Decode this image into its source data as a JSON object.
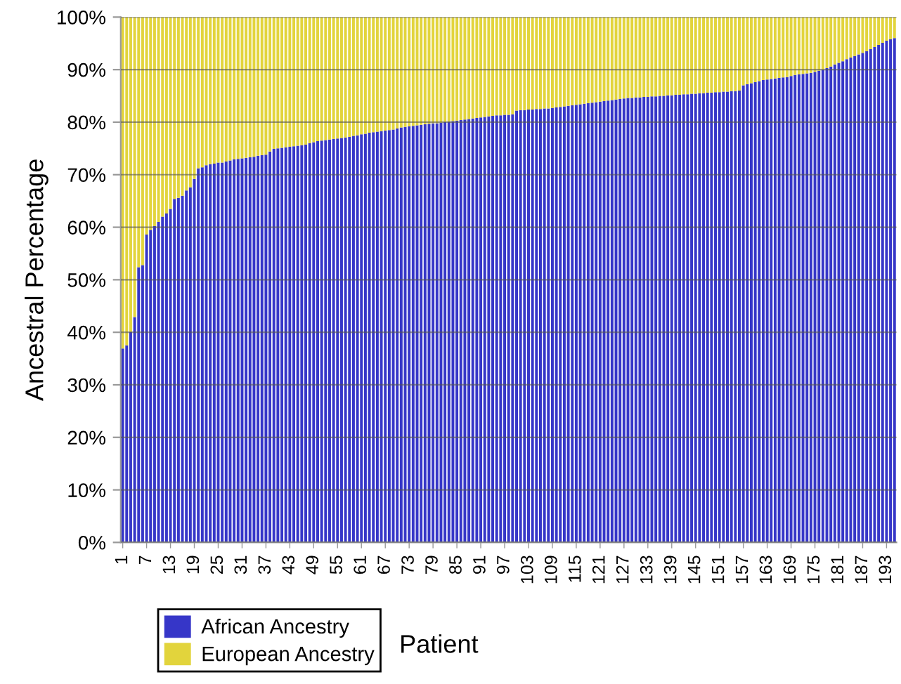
{
  "chart_data": {
    "type": "bar",
    "stacked": true,
    "ylabel": "Ancestral Percentage",
    "xlabel": "Patient",
    "categories": [
      "1",
      null,
      null,
      null,
      null,
      null,
      "7",
      null,
      null,
      null,
      null,
      null,
      "13",
      null,
      null,
      null,
      null,
      null,
      "19",
      null,
      null,
      null,
      null,
      null,
      "25",
      null,
      null,
      null,
      null,
      null,
      "31",
      null,
      null,
      null,
      null,
      null,
      "37",
      null,
      null,
      null,
      null,
      null,
      "43",
      null,
      null,
      null,
      null,
      null,
      "49",
      null,
      null,
      null,
      null,
      null,
      "55",
      null,
      null,
      null,
      null,
      null,
      "61",
      null,
      null,
      null,
      null,
      null,
      "67",
      null,
      null,
      null,
      null,
      null,
      "73",
      null,
      null,
      null,
      null,
      null,
      "79",
      null,
      null,
      null,
      null,
      null,
      "85",
      null,
      null,
      null,
      null,
      null,
      "91",
      null,
      null,
      null,
      null,
      null,
      "97",
      null,
      null,
      null,
      null,
      null,
      "103",
      null,
      null,
      null,
      null,
      null,
      "109",
      null,
      null,
      null,
      null,
      null,
      "115",
      null,
      null,
      null,
      null,
      null,
      "121",
      null,
      null,
      null,
      null,
      null,
      "127",
      null,
      null,
      null,
      null,
      null,
      "133",
      null,
      null,
      null,
      null,
      null,
      "139",
      null,
      null,
      null,
      null,
      null,
      "145",
      null,
      null,
      null,
      null,
      null,
      "151",
      null,
      null,
      null,
      null,
      null,
      "157",
      null,
      null,
      null,
      null,
      null,
      "163",
      null,
      null,
      null,
      null,
      null,
      "169",
      null,
      null,
      null,
      null,
      null,
      "175",
      null,
      null,
      null,
      null,
      null,
      "181",
      null,
      null,
      null,
      null,
      null,
      "187",
      null,
      null,
      null,
      null,
      null,
      "193",
      null,
      null
    ],
    "series": [
      {
        "name": "African Ancestry",
        "color": "#3636c8",
        "values": [
          36.9,
          37.5,
          40.1,
          42.9,
          52.4,
          52.8,
          58.6,
          59.5,
          60.2,
          61.0,
          62.0,
          62.6,
          63.5,
          65.4,
          65.6,
          66.0,
          67.0,
          67.6,
          69.2,
          71.2,
          71.4,
          71.8,
          72.0,
          72.1,
          72.3,
          72.3,
          72.5,
          72.7,
          72.9,
          73.0,
          73.1,
          73.2,
          73.3,
          73.4,
          73.6,
          73.7,
          73.8,
          74.4,
          74.9,
          75.0,
          75.1,
          75.2,
          75.3,
          75.4,
          75.5,
          75.6,
          75.7,
          76.0,
          76.2,
          76.4,
          76.5,
          76.6,
          76.7,
          76.8,
          76.9,
          77.0,
          77.1,
          77.2,
          77.4,
          77.5,
          77.7,
          77.8,
          78.0,
          78.1,
          78.2,
          78.3,
          78.4,
          78.5,
          78.6,
          78.8,
          79.0,
          79.1,
          79.2,
          79.3,
          79.4,
          79.5,
          79.6,
          79.7,
          79.8,
          79.8,
          79.9,
          80.0,
          80.1,
          80.2,
          80.3,
          80.4,
          80.5,
          80.6,
          80.7,
          80.8,
          80.9,
          81.0,
          81.1,
          81.2,
          81.3,
          81.3,
          81.4,
          81.4,
          81.5,
          82.2,
          82.3,
          82.3,
          82.4,
          82.4,
          82.5,
          82.5,
          82.6,
          82.6,
          82.7,
          82.8,
          82.9,
          83.0,
          83.1,
          83.2,
          83.3,
          83.4,
          83.5,
          83.6,
          83.7,
          83.8,
          83.9,
          84.0,
          84.1,
          84.2,
          84.3,
          84.4,
          84.5,
          84.6,
          84.6,
          84.7,
          84.7,
          84.8,
          84.8,
          84.9,
          84.9,
          85.0,
          85.0,
          85.1,
          85.1,
          85.2,
          85.2,
          85.3,
          85.3,
          85.4,
          85.4,
          85.5,
          85.5,
          85.6,
          85.6,
          85.7,
          85.7,
          85.8,
          85.8,
          85.9,
          85.9,
          86.0,
          87.0,
          87.2,
          87.4,
          87.6,
          87.8,
          88.0,
          88.1,
          88.2,
          88.3,
          88.4,
          88.5,
          88.6,
          88.8,
          89.0,
          89.1,
          89.2,
          89.3,
          89.4,
          89.6,
          89.8,
          90.0,
          90.3,
          90.6,
          91.0,
          91.3,
          91.6,
          92.0,
          92.3,
          92.6,
          92.9,
          93.2,
          93.5,
          93.9,
          94.3,
          94.7,
          95.1,
          95.5,
          95.8,
          96.0
        ]
      },
      {
        "name": "European Ancestry",
        "color": "#e2d43c",
        "values": [
          63.1,
          62.5,
          59.9,
          57.1,
          47.6,
          47.2,
          41.4,
          40.5,
          39.8,
          39.0,
          38.0,
          37.4,
          36.5,
          34.6,
          34.4,
          34.0,
          33.0,
          32.4,
          30.8,
          28.8,
          28.6,
          28.2,
          28.0,
          27.9,
          27.7,
          27.7,
          27.5,
          27.3,
          27.1,
          27.0,
          26.9,
          26.8,
          26.7,
          26.6,
          26.4,
          26.3,
          26.2,
          25.6,
          25.1,
          25.0,
          24.9,
          24.8,
          24.7,
          24.6,
          24.5,
          24.4,
          24.3,
          24.0,
          23.8,
          23.6,
          23.5,
          23.4,
          23.3,
          23.2,
          23.1,
          23.0,
          22.9,
          22.8,
          22.6,
          22.5,
          22.3,
          22.2,
          22.0,
          21.9,
          21.8,
          21.7,
          21.6,
          21.5,
          21.4,
          21.2,
          21.0,
          20.9,
          20.8,
          20.7,
          20.6,
          20.5,
          20.4,
          20.3,
          20.2,
          20.2,
          20.1,
          20.0,
          19.9,
          19.8,
          19.7,
          19.6,
          19.5,
          19.4,
          19.3,
          19.2,
          19.1,
          19.0,
          18.9,
          18.8,
          18.7,
          18.7,
          18.6,
          18.6,
          18.5,
          17.8,
          17.7,
          17.7,
          17.6,
          17.6,
          17.5,
          17.5,
          17.4,
          17.4,
          17.3,
          17.2,
          17.1,
          17.0,
          16.9,
          16.8,
          16.7,
          16.6,
          16.5,
          16.4,
          16.3,
          16.2,
          16.1,
          16.0,
          15.9,
          15.8,
          15.7,
          15.6,
          15.5,
          15.4,
          15.4,
          15.3,
          15.3,
          15.2,
          15.2,
          15.1,
          15.1,
          15.0,
          15.0,
          14.9,
          14.9,
          14.8,
          14.8,
          14.7,
          14.7,
          14.6,
          14.6,
          14.5,
          14.5,
          14.4,
          14.4,
          14.3,
          14.3,
          14.2,
          14.2,
          14.1,
          14.1,
          14.0,
          13.0,
          12.8,
          12.6,
          12.4,
          12.2,
          12.0,
          11.9,
          11.8,
          11.7,
          11.6,
          11.5,
          11.4,
          11.2,
          11.0,
          10.9,
          10.8,
          10.7,
          10.6,
          10.4,
          10.2,
          10.0,
          9.7,
          9.4,
          9.0,
          8.7,
          8.4,
          8.0,
          7.7,
          7.4,
          7.1,
          6.8,
          6.5,
          6.1,
          5.7,
          5.3,
          4.9,
          4.5,
          4.2,
          4.0
        ]
      }
    ],
    "ylim": [
      0,
      100
    ],
    "yticks": [
      {
        "value": 0,
        "label": "0%"
      },
      {
        "value": 10,
        "label": "10%"
      },
      {
        "value": 20,
        "label": "20%"
      },
      {
        "value": 30,
        "label": "30%"
      },
      {
        "value": 40,
        "label": "40%"
      },
      {
        "value": 50,
        "label": "50%"
      },
      {
        "value": 60,
        "label": "60%"
      },
      {
        "value": 70,
        "label": "70%"
      },
      {
        "value": 80,
        "label": "80%"
      },
      {
        "value": 90,
        "label": "90%"
      },
      {
        "value": 100,
        "label": "100%"
      }
    ],
    "grid": "y",
    "legend": "bottom left"
  }
}
